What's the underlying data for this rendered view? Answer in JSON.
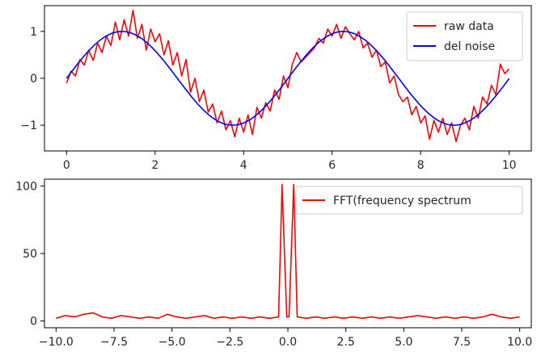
{
  "chart_data": [
    {
      "type": "line",
      "xlim": [
        -0.5,
        10.5
      ],
      "ylim": [
        -1.55,
        1.55
      ],
      "xticks": [
        0,
        2,
        4,
        6,
        8,
        10
      ],
      "xtick_labels": [
        "0",
        "2",
        "4",
        "6",
        "8",
        "10"
      ],
      "yticks": [
        -1,
        0,
        1
      ],
      "ytick_labels": [
        "−1",
        "0",
        "1"
      ],
      "grid": false,
      "legend_position": "top-right",
      "series": [
        {
          "name": "raw data",
          "color": "#ff0000",
          "x": [
            0.0,
            0.1,
            0.2,
            0.3,
            0.4,
            0.5,
            0.6,
            0.7,
            0.8,
            0.9,
            1.0,
            1.1,
            1.2,
            1.3,
            1.4,
            1.5,
            1.6,
            1.7,
            1.8,
            1.9,
            2.0,
            2.1,
            2.2,
            2.3,
            2.4,
            2.5,
            2.6,
            2.7,
            2.8,
            2.9,
            3.0,
            3.1,
            3.2,
            3.3,
            3.4,
            3.5,
            3.6,
            3.7,
            3.8,
            3.9,
            4.0,
            4.1,
            4.2,
            4.3,
            4.4,
            4.5,
            4.6,
            4.7,
            4.8,
            4.9,
            5.0,
            5.1,
            5.2,
            5.3,
            5.4,
            5.5,
            5.6,
            5.7,
            5.8,
            5.9,
            6.0,
            6.1,
            6.2,
            6.3,
            6.4,
            6.5,
            6.6,
            6.7,
            6.8,
            6.9,
            7.0,
            7.1,
            7.2,
            7.3,
            7.4,
            7.5,
            7.6,
            7.7,
            7.8,
            7.9,
            8.0,
            8.1,
            8.2,
            8.3,
            8.4,
            8.5,
            8.6,
            8.7,
            8.8,
            8.9,
            9.0,
            9.1,
            9.2,
            9.3,
            9.4,
            9.5,
            9.6,
            9.7,
            9.8,
            9.9,
            10.0
          ],
          "y": [
            -0.1,
            0.15,
            0.05,
            0.4,
            0.28,
            0.6,
            0.38,
            0.75,
            0.55,
            0.9,
            0.7,
            1.2,
            0.82,
            1.25,
            0.9,
            1.45,
            0.85,
            1.15,
            0.6,
            1.05,
            0.78,
            0.95,
            0.5,
            0.8,
            0.28,
            0.55,
            0.05,
            0.4,
            -0.3,
            0.0,
            -0.5,
            -0.25,
            -0.72,
            -0.55,
            -0.95,
            -0.7,
            -1.1,
            -0.9,
            -1.25,
            -0.85,
            -1.15,
            -0.78,
            -1.2,
            -0.62,
            -0.85,
            -0.52,
            -0.7,
            -0.25,
            -0.45,
            0.05,
            -0.2,
            0.3,
            0.55,
            0.35,
            0.45,
            0.55,
            0.65,
            0.85,
            0.75,
            1.05,
            0.9,
            1.15,
            0.85,
            1.1,
            0.95,
            0.82,
            1.0,
            0.65,
            0.75,
            0.45,
            0.6,
            0.25,
            0.35,
            -0.1,
            0.05,
            -0.35,
            -0.5,
            -0.4,
            -0.78,
            -0.6,
            -0.95,
            -0.8,
            -1.3,
            -0.9,
            -1.15,
            -0.85,
            -1.2,
            -0.95,
            -1.35,
            -1.0,
            -0.85,
            -1.1,
            -0.6,
            -0.85,
            -0.4,
            -0.55,
            -0.15,
            -0.35,
            0.3,
            0.1,
            0.2
          ]
        },
        {
          "name": "del noise",
          "color": "#0000ff",
          "function": "sin(1.256*x)"
        }
      ]
    },
    {
      "type": "line",
      "xlim": [
        -10.5,
        10.5
      ],
      "ylim": [
        -5,
        105
      ],
      "xticks": [
        -10.0,
        -7.5,
        -5.0,
        -2.5,
        0.0,
        2.5,
        5.0,
        7.5,
        10.0
      ],
      "xtick_labels": [
        "−10.0",
        "−7.5",
        "−5.0",
        "−2.5",
        "0.0",
        "2.5",
        "5.0",
        "7.5",
        "10.0"
      ],
      "yticks": [
        0,
        50,
        100
      ],
      "ytick_labels": [
        "0",
        "50",
        "100"
      ],
      "grid": false,
      "legend_position": "top-right",
      "series": [
        {
          "name": "FFT(frequency spectrum",
          "color": "#ff0000",
          "x": [
            -10.0,
            -9.6,
            -9.2,
            -8.8,
            -8.4,
            -8.0,
            -7.6,
            -7.2,
            -6.8,
            -6.4,
            -6.0,
            -5.6,
            -5.2,
            -4.8,
            -4.4,
            -4.0,
            -3.6,
            -3.2,
            -2.8,
            -2.4,
            -2.0,
            -1.6,
            -1.2,
            -0.8,
            -0.4,
            -0.25,
            -0.05,
            0.05,
            0.25,
            0.4,
            0.8,
            1.2,
            1.6,
            2.0,
            2.4,
            2.8,
            3.2,
            3.6,
            4.0,
            4.4,
            4.8,
            5.2,
            5.6,
            6.0,
            6.4,
            6.8,
            7.2,
            7.6,
            8.0,
            8.4,
            8.8,
            9.2,
            9.6,
            10.0
          ],
          "y": [
            2,
            4,
            3,
            5,
            6,
            3,
            2,
            4,
            3,
            2,
            3,
            2,
            5,
            3,
            2,
            3,
            4,
            2,
            3,
            2,
            3,
            2,
            3,
            2,
            3,
            101,
            3,
            3,
            101,
            3,
            2,
            3,
            2,
            3,
            2,
            3,
            2,
            3,
            2,
            3,
            2,
            3,
            4,
            3,
            2,
            3,
            2,
            3,
            2,
            3,
            5,
            3,
            2,
            3
          ]
        }
      ]
    }
  ]
}
